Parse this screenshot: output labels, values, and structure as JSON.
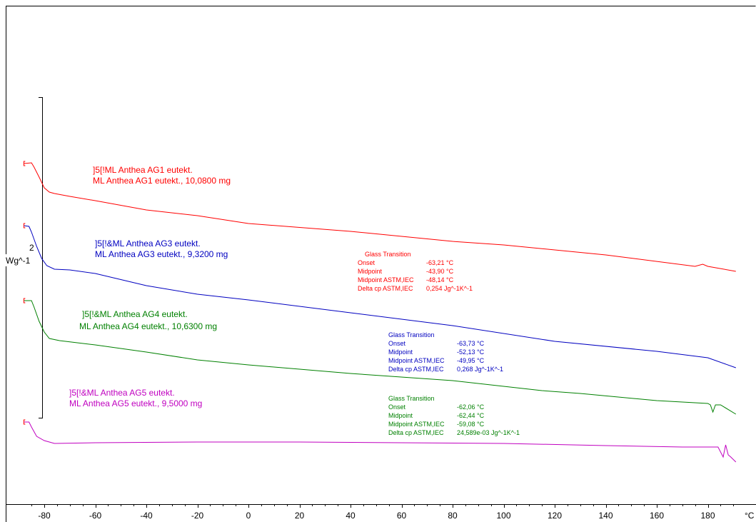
{
  "chart_data": {
    "type": "line",
    "xlabel": "°C",
    "x_unit": "°C",
    "xlim": [
      -88,
      191
    ],
    "x_ticks": [
      -80,
      -60,
      -40,
      -20,
      0,
      20,
      40,
      60,
      80,
      100,
      120,
      140,
      160,
      180
    ],
    "y_scale_label": "Wg^-1",
    "y_scale_value": "2",
    "series": [
      {
        "name": "ML Anthea AG1 eutekt., 10,0800 mg",
        "color": "#ff0000",
        "header": "]5[!ML Anthea AG1 eutekt.",
        "subheader": "ML Anthea AG1 eutekt., 10,0800 mg",
        "points": [
          [
            -88,
            229
          ],
          [
            -85,
            228
          ],
          [
            -84,
            234
          ],
          [
            -82,
            248
          ],
          [
            -80,
            263
          ],
          [
            -78,
            269
          ],
          [
            -76,
            271
          ],
          [
            -70,
            275
          ],
          [
            -60,
            281
          ],
          [
            -40,
            294
          ],
          [
            -20,
            302
          ],
          [
            0,
            313
          ],
          [
            40,
            324
          ],
          [
            80,
            338
          ],
          [
            100,
            343
          ],
          [
            140,
            357
          ],
          [
            175,
            373
          ],
          [
            178,
            370
          ],
          [
            180,
            373
          ],
          [
            191,
            380
          ]
        ]
      },
      {
        "name": "ML Anthea AG3 eutekt., 9,3200 mg",
        "color": "#0000c0",
        "header": "]5[!&ML Anthea AG3 eutekt.",
        "subheader": "ML Anthea AG3 eutekt., 9,3200 mg",
        "points": [
          [
            -88,
            316
          ],
          [
            -86,
            317
          ],
          [
            -85,
            325
          ],
          [
            -83,
            345
          ],
          [
            -81,
            362
          ],
          [
            -79,
            372
          ],
          [
            -76,
            377
          ],
          [
            -70,
            378
          ],
          [
            -60,
            383
          ],
          [
            -40,
            400
          ],
          [
            -20,
            412
          ],
          [
            0,
            420
          ],
          [
            40,
            438
          ],
          [
            80,
            456
          ],
          [
            120,
            478
          ],
          [
            160,
            492
          ],
          [
            180,
            501
          ],
          [
            191,
            515
          ]
        ]
      },
      {
        "name": "ML Anthea AG4 eutekt., 10,6300 mg",
        "color": "#008000",
        "header": "]5[!&ML Anthea AG4 eutekt.",
        "subheader": "ML Anthea AG4 eutekt., 10,6300 mg",
        "points": [
          [
            -88,
            421
          ],
          [
            -85,
            421
          ],
          [
            -84,
            430
          ],
          [
            -82,
            450
          ],
          [
            -80,
            465
          ],
          [
            -78,
            474
          ],
          [
            -74,
            477
          ],
          [
            -60,
            483
          ],
          [
            -40,
            493
          ],
          [
            -20,
            504
          ],
          [
            0,
            511
          ],
          [
            40,
            523
          ],
          [
            80,
            533
          ],
          [
            115,
            547
          ],
          [
            130,
            551
          ],
          [
            160,
            561
          ],
          [
            180,
            565
          ],
          [
            181,
            567
          ],
          [
            182,
            577
          ],
          [
            183,
            567
          ],
          [
            185,
            567
          ],
          [
            191,
            580
          ]
        ]
      },
      {
        "name": "ML Anthea AG5 eutekt., 9,5000 mg",
        "color": "#c000c0",
        "header": "]5[!&ML Anthea AG5 eutekt.",
        "subheader": "ML Anthea AG5 eutekt., 9,5000 mg",
        "points": [
          [
            -88,
            591
          ],
          [
            -86,
            591
          ],
          [
            -85,
            598
          ],
          [
            -83,
            611
          ],
          [
            -80,
            617
          ],
          [
            -76,
            621
          ],
          [
            -60,
            620
          ],
          [
            -20,
            619
          ],
          [
            20,
            619
          ],
          [
            60,
            620
          ],
          [
            100,
            621
          ],
          [
            140,
            624
          ],
          [
            170,
            626
          ],
          [
            184,
            626
          ],
          [
            186,
            640
          ],
          [
            187,
            623
          ],
          [
            188,
            637
          ],
          [
            189,
            640
          ],
          [
            191,
            647
          ]
        ]
      }
    ],
    "glass_transitions": [
      {
        "color": "#ff0000",
        "title": "Glass Transition",
        "rows": [
          {
            "label": "Onset",
            "value": "-63,21 °C"
          },
          {
            "label": "Midpoint",
            "value": "-43,90 °C"
          },
          {
            "label": "Midpoint ASTM,IEC",
            "value": "-48,14 °C"
          },
          {
            "label": "Delta cp ASTM,IEC",
            "value": "0,254 Jg^-1K^-1"
          }
        ]
      },
      {
        "color": "#0000c0",
        "title": "Glass Transition",
        "rows": [
          {
            "label": "Onset",
            "value": "-63,73 °C"
          },
          {
            "label": "Midpoint",
            "value": "-52,13 °C"
          },
          {
            "label": "Midpoint ASTM,IEC",
            "value": "-49,95 °C"
          },
          {
            "label": "Delta cp ASTM,IEC",
            "value": "0,268 Jg^-1K^-1"
          }
        ]
      },
      {
        "color": "#008000",
        "title": "Glass Transition",
        "rows": [
          {
            "label": "Onset",
            "value": "-62,06 °C"
          },
          {
            "label": "Midpoint",
            "value": "-62,44 °C"
          },
          {
            "label": "Midpoint ASTM,IEC",
            "value": "-59,08 °C"
          },
          {
            "label": "Delta cp ASTM,IEC",
            "value": "24,589e-03 Jg^-1K^-1"
          }
        ]
      }
    ]
  }
}
